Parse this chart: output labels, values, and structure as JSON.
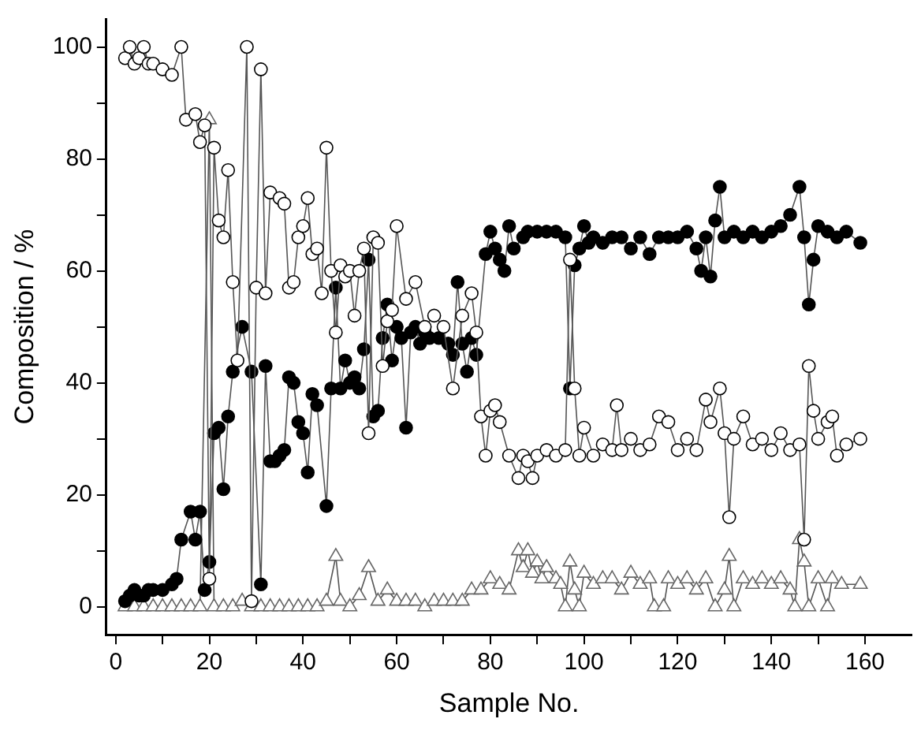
{
  "chart_data": {
    "type": "line",
    "xlabel": "Sample No.",
    "ylabel": "Composition / %",
    "xlim": [
      -2,
      170
    ],
    "ylim": [
      -5,
      105
    ],
    "xticks": [
      0,
      {
        "value": 10,
        "label": null
      },
      20,
      {
        "value": 30,
        "label": null
      },
      40,
      {
        "value": 50,
        "label": null
      },
      60,
      {
        "value": 70,
        "label": null
      },
      80,
      {
        "value": 90,
        "label": null
      },
      100,
      {
        "value": 110,
        "label": null
      },
      120,
      {
        "value": 130,
        "label": null
      },
      140,
      {
        "value": 150,
        "label": null
      },
      160
    ],
    "yticks": [
      0,
      {
        "value": 10,
        "label": null
      },
      20,
      {
        "value": 30,
        "label": null
      },
      40,
      {
        "value": 50,
        "label": null
      },
      60,
      {
        "value": 70,
        "label": null
      },
      80,
      {
        "value": 90,
        "label": null
      },
      100
    ],
    "grid": false,
    "legend": false,
    "line_style": "solid",
    "series": [
      {
        "color": "#ffffff",
        "marker": "circle",
        "x": [
          2,
          3,
          4,
          5,
          6,
          7,
          8,
          10,
          12,
          14,
          15,
          17,
          18,
          19,
          20,
          21,
          22,
          23,
          24,
          25,
          26,
          28,
          29,
          30,
          31,
          32,
          33,
          35,
          36,
          37,
          38,
          39,
          40,
          41,
          42,
          43,
          44,
          45,
          46,
          47,
          48,
          49,
          50,
          51,
          52,
          53,
          54,
          55,
          56,
          57,
          58,
          59,
          60,
          62,
          64,
          66,
          68,
          70,
          72,
          74,
          76,
          77,
          78,
          79,
          80,
          81,
          82,
          84,
          86,
          87,
          88,
          89,
          90,
          92,
          94,
          96,
          97,
          98,
          99,
          100,
          102,
          104,
          106,
          107,
          108,
          110,
          112,
          114,
          116,
          118,
          120,
          122,
          124,
          126,
          127,
          129,
          130,
          131,
          132,
          134,
          136,
          138,
          140,
          142,
          144,
          146,
          147,
          148,
          149,
          150,
          152,
          153,
          154,
          156,
          159
        ],
        "values": [
          98,
          100,
          97,
          98,
          100,
          97,
          97,
          96,
          95,
          100,
          87,
          88,
          83,
          86,
          5,
          82,
          69,
          66,
          78,
          58,
          44,
          100,
          1,
          57,
          96,
          56,
          74,
          73,
          72,
          57,
          58,
          66,
          68,
          73,
          63,
          64,
          56,
          82,
          60,
          49,
          61,
          59,
          60,
          52,
          60,
          64,
          31,
          66,
          65,
          43,
          51,
          53,
          68,
          55,
          58,
          50,
          52,
          50,
          39,
          52,
          56,
          49,
          34,
          27,
          35,
          36,
          33,
          27,
          23,
          27,
          26,
          23,
          27,
          28,
          27,
          28,
          62,
          39,
          27,
          32,
          27,
          29,
          28,
          36,
          28,
          30,
          28,
          29,
          34,
          33,
          28,
          30,
          28,
          37,
          33,
          39,
          31,
          16,
          30,
          34,
          29,
          30,
          28,
          31,
          28,
          29,
          12,
          43,
          35,
          30,
          33,
          34,
          27,
          29,
          30
        ]
      },
      {
        "color": "#000000",
        "marker": "circle",
        "x": [
          2,
          3,
          4,
          5,
          6,
          7,
          8,
          10,
          12,
          13,
          14,
          16,
          17,
          18,
          19,
          20,
          21,
          22,
          23,
          24,
          25,
          27,
          29,
          31,
          32,
          33,
          34,
          35,
          36,
          37,
          38,
          39,
          40,
          41,
          42,
          43,
          45,
          46,
          47,
          48,
          49,
          50,
          51,
          52,
          53,
          54,
          55,
          56,
          57,
          58,
          59,
          60,
          61,
          62,
          63,
          64,
          65,
          66,
          67,
          69,
          71,
          72,
          73,
          74,
          75,
          76,
          77,
          79,
          80,
          81,
          82,
          83,
          84,
          85,
          87,
          88,
          90,
          92,
          94,
          96,
          97,
          98,
          99,
          100,
          101,
          102,
          104,
          106,
          108,
          110,
          112,
          114,
          116,
          118,
          120,
          122,
          124,
          125,
          126,
          127,
          128,
          129,
          130,
          132,
          134,
          136,
          138,
          140,
          142,
          144,
          146,
          147,
          148,
          149,
          150,
          152,
          154,
          156,
          159
        ],
        "values": [
          1,
          2,
          3,
          2,
          2,
          3,
          3,
          3,
          4,
          5,
          12,
          17,
          12,
          17,
          3,
          8,
          31,
          32,
          21,
          34,
          42,
          50,
          42,
          4,
          43,
          26,
          26,
          27,
          28,
          41,
          40,
          33,
          31,
          24,
          38,
          36,
          18,
          39,
          57,
          39,
          44,
          40,
          41,
          39,
          46,
          62,
          34,
          35,
          48,
          54,
          44,
          50,
          48,
          32,
          49,
          50,
          47,
          49,
          48,
          48,
          47,
          45,
          58,
          47,
          42,
          48,
          45,
          63,
          67,
          64,
          62,
          60,
          68,
          64,
          66,
          67,
          67,
          67,
          67,
          66,
          39,
          61,
          64,
          68,
          65,
          66,
          65,
          66,
          66,
          64,
          66,
          63,
          66,
          66,
          66,
          67,
          64,
          60,
          66,
          59,
          69,
          75,
          66,
          67,
          66,
          67,
          66,
          67,
          68,
          70,
          75,
          66,
          54,
          62,
          68,
          67,
          66,
          67,
          65
        ]
      },
      {
        "color": "#ffffff",
        "marker": "triangle",
        "x": [
          2,
          4,
          6,
          8,
          10,
          12,
          14,
          16,
          18,
          20,
          21,
          23,
          25,
          27,
          29,
          31,
          33,
          35,
          37,
          39,
          41,
          43,
          45,
          47,
          48,
          50,
          52,
          54,
          56,
          58,
          60,
          62,
          64,
          66,
          68,
          70,
          72,
          74,
          76,
          78,
          80,
          82,
          84,
          86,
          87,
          88,
          89,
          90,
          91,
          92,
          94,
          95,
          96,
          97,
          98,
          99,
          100,
          102,
          104,
          106,
          108,
          110,
          112,
          114,
          115,
          117,
          118,
          120,
          122,
          124,
          126,
          128,
          130,
          131,
          132,
          134,
          136,
          138,
          140,
          142,
          144,
          145,
          146,
          147,
          148,
          150,
          152,
          153,
          155,
          159
        ],
        "values": [
          0,
          0,
          0,
          0,
          0,
          0,
          0,
          0,
          0,
          87,
          0,
          0,
          0,
          1,
          0,
          0,
          0,
          0,
          0,
          0,
          0,
          0,
          1,
          9,
          1,
          0,
          2,
          7,
          1,
          3,
          1,
          1,
          1,
          0,
          1,
          1,
          1,
          1,
          3,
          3,
          5,
          4,
          3,
          10,
          7,
          10,
          6,
          8,
          5,
          7,
          5,
          4,
          0,
          8,
          3,
          0,
          6,
          4,
          5,
          5,
          3,
          6,
          4,
          5,
          0,
          0,
          5,
          4,
          5,
          3,
          5,
          0,
          3,
          9,
          0,
          5,
          4,
          5,
          4,
          5,
          3,
          0,
          12,
          8,
          0,
          5,
          0,
          5,
          4,
          4
        ]
      }
    ]
  }
}
